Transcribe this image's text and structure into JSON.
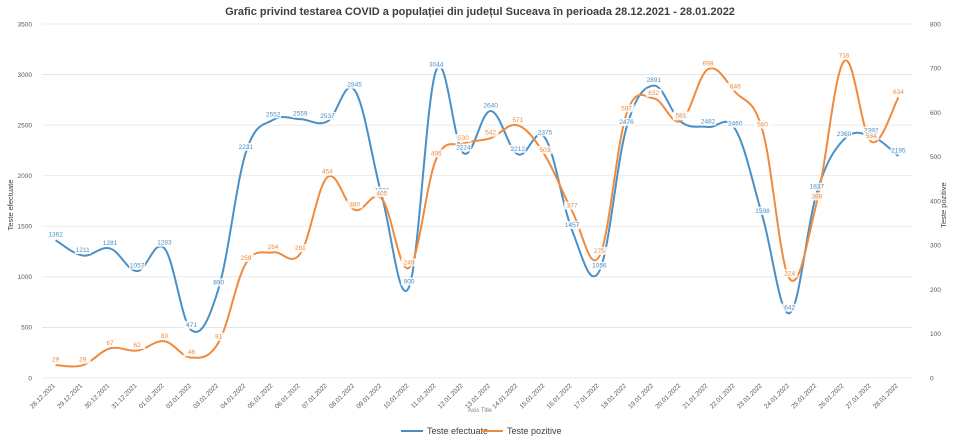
{
  "chart_data": {
    "type": "line",
    "title": "Grafic privind testarea COVID a populației din județul Suceava în perioada 28.12.2021 - 28.01.2022",
    "xlabel": "Axis Title",
    "ylabel": "Teste efectuate",
    "y2label": "Teste pozitive",
    "ylim": [
      0,
      3500
    ],
    "y2lim": [
      0,
      800
    ],
    "yticks": [
      0,
      500,
      1000,
      1500,
      2000,
      2500,
      3000,
      3500
    ],
    "y2ticks": [
      0,
      100,
      200,
      300,
      400,
      500,
      600,
      700,
      800
    ],
    "grid": true,
    "legend_position": "bottom",
    "categories": [
      "28.12.2021",
      "29.12.2021",
      "30.12.2021",
      "31.12.2021",
      "01.01.2022",
      "02.01.2022",
      "03.01.2022",
      "04.01.2022",
      "05.01.2022",
      "06.01.2022",
      "07.01.2022",
      "08.01.2022",
      "09.01.2022",
      "10.01.2022",
      "11.01.2022",
      "12.01.2022",
      "13.01.2022",
      "14.01.2022",
      "15.01.2022",
      "16.01.2022",
      "17.01.2022",
      "18.01.2022",
      "19.01.2022",
      "20.01.2022",
      "21.01.2022",
      "22.01.2022",
      "23.01.2022",
      "24.01.2022",
      "25.01.2022",
      "26.01.2022",
      "27.01.2022",
      "28.01.2022"
    ],
    "series": [
      {
        "name": "Teste efectuate",
        "axis": "left",
        "color": "#4a90c8",
        "values": [
          1362,
          1211,
          1281,
          1057,
          1283,
          471,
          890,
          2231,
          2552,
          2559,
          2537,
          2845,
          1800,
          900,
          3044,
          2224,
          2640,
          2212,
          2375,
          1457,
          1056,
          2476,
          2891,
          2533,
          2482,
          2460,
          1598,
          642,
          1837,
          2360,
          2392,
          2195
        ]
      },
      {
        "name": "Teste pozitive",
        "axis": "right",
        "color": "#f08a3c",
        "values": [
          29,
          29,
          67,
          62,
          83,
          46,
          81,
          259,
          284,
          281,
          454,
          380,
          405,
          249,
          495,
          530,
          542,
          571,
          503,
          377,
          275,
          597,
          632,
          581,
          698,
          646,
          560,
          224,
          398,
          716,
          534,
          634
        ]
      }
    ]
  }
}
